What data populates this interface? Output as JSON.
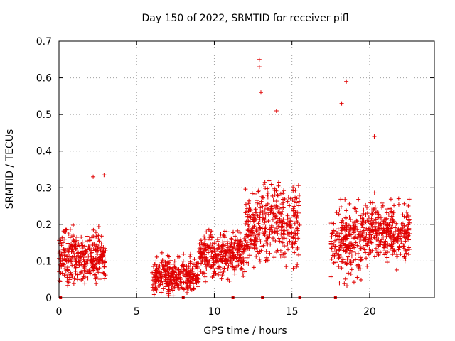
{
  "chart_data": {
    "type": "scatter",
    "title": "Day 150 of 2022, SRMTID for receiver pifl",
    "xlabel": "GPS time / hours",
    "ylabel": "SRMTID / TECUs",
    "xlim": [
      0,
      24.17
    ],
    "ylim": [
      0,
      0.7
    ],
    "xticks": [
      0,
      5,
      10,
      15,
      20
    ],
    "xtick_labels": [
      "0",
      "5",
      "10",
      "15",
      "20"
    ],
    "yticks": [
      0,
      0.1,
      0.2,
      0.3,
      0.4,
      0.5,
      0.6,
      0.7
    ],
    "ytick_labels": [
      "0",
      "0.1",
      "0.2",
      "0.3",
      "0.4",
      "0.5",
      "0.6",
      "0.7"
    ],
    "grid": true,
    "marker": "+",
    "color": "#e00000",
    "series_clusters": [
      {
        "x_range": [
          0.0,
          3.0
        ],
        "y_base": 0.11,
        "y_spread": 0.09,
        "notes": "early morning burst, peaks near 0.33 at ~2.2h"
      },
      {
        "x_range": [
          6.0,
          9.0
        ],
        "y_base": 0.06,
        "y_spread": 0.06,
        "notes": "low activity, values 0-0.2"
      },
      {
        "x_range": [
          9.0,
          12.0
        ],
        "y_base": 0.12,
        "y_spread": 0.08,
        "notes": "rising, up to ~0.26"
      },
      {
        "x_range": [
          12.0,
          15.5
        ],
        "y_base": 0.2,
        "y_spread": 0.14,
        "notes": "main daytime peak, max ~0.65 at ~12.9h"
      },
      {
        "x_range": [
          17.5,
          19.5
        ],
        "y_base": 0.15,
        "y_spread": 0.12,
        "notes": "evening peak, max ~0.59 at ~18.5h"
      },
      {
        "x_range": [
          19.5,
          22.6
        ],
        "y_base": 0.18,
        "y_spread": 0.1,
        "notes": "sustained, up to ~0.44"
      }
    ],
    "peak_points": [
      {
        "x": 12.9,
        "y": 0.65
      },
      {
        "x": 12.9,
        "y": 0.63
      },
      {
        "x": 13.0,
        "y": 0.56
      },
      {
        "x": 14.0,
        "y": 0.51
      },
      {
        "x": 18.5,
        "y": 0.59
      },
      {
        "x": 18.2,
        "y": 0.53
      },
      {
        "x": 2.2,
        "y": 0.33
      },
      {
        "x": 2.9,
        "y": 0.335
      },
      {
        "x": 20.3,
        "y": 0.44
      }
    ],
    "zero_markers_x": [
      0.1,
      8.0,
      11.2,
      13.1,
      15.5,
      17.8
    ]
  }
}
